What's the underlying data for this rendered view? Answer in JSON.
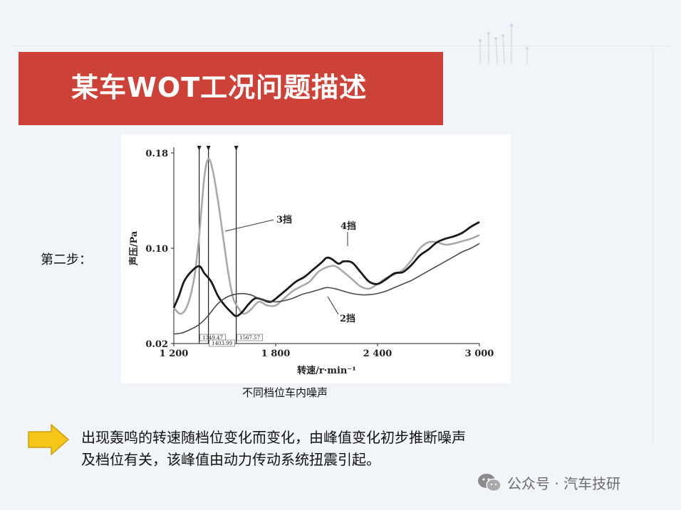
{
  "title": "某车WOT工况问题描述",
  "step_label": "第二步：",
  "caption": "不同档位车内噪声",
  "description_lines": [
    "出现轰鸣的转速随档位变化而变化，由峰值变化初步推断噪声",
    "及档位有关，该峰值由动力传动系统扭震引起。"
  ],
  "watermark": "公众号 · 汽车技研",
  "colors": {
    "title_bar": "#cc4238",
    "arrow": "#f5c518"
  },
  "chart_data": {
    "type": "line",
    "xlabel": "转速/r·min⁻¹",
    "ylabel": "声压/Pa",
    "xlim": [
      1200,
      3000
    ],
    "ylim": [
      0.02,
      0.18
    ],
    "x_ticks": [
      "1 200",
      "1 800",
      "2 400",
      "3 000"
    ],
    "y_ticks": [
      "0.18",
      "0.10",
      "0.02"
    ],
    "vlines": [
      {
        "x": 1349.47,
        "label": "1349.47"
      },
      {
        "x": 1403.99,
        "label": "1403.99"
      },
      {
        "x": 1567.57,
        "label": "1567.57"
      }
    ],
    "series": [
      {
        "name": "3挡",
        "color": "#a9a9a9",
        "x": [
          1200,
          1240,
          1280,
          1320,
          1349,
          1380,
          1404,
          1430,
          1460,
          1490,
          1520,
          1550,
          1580,
          1610,
          1650,
          1700,
          1750,
          1800,
          1850,
          1900,
          1950,
          2000,
          2050,
          2100,
          2150,
          2200,
          2250,
          2300,
          2350,
          2400,
          2450,
          2500,
          2550,
          2600,
          2650,
          2700,
          2750,
          2800,
          2850,
          2900,
          2950,
          3000
        ],
        "y": [
          0.05,
          0.045,
          0.052,
          0.075,
          0.11,
          0.16,
          0.175,
          0.165,
          0.14,
          0.11,
          0.08,
          0.058,
          0.05,
          0.045,
          0.048,
          0.055,
          0.052,
          0.052,
          0.058,
          0.064,
          0.068,
          0.072,
          0.08,
          0.084,
          0.085,
          0.08,
          0.074,
          0.068,
          0.066,
          0.07,
          0.075,
          0.078,
          0.082,
          0.09,
          0.1,
          0.105,
          0.105,
          0.103,
          0.104,
          0.106,
          0.108,
          0.111
        ]
      },
      {
        "name": "4挡",
        "color": "#1a1a1a",
        "x": [
          1200,
          1230,
          1260,
          1300,
          1349,
          1380,
          1420,
          1460,
          1500,
          1540,
          1567,
          1600,
          1640,
          1680,
          1720,
          1770,
          1820,
          1870,
          1920,
          1970,
          2020,
          2070,
          2100,
          2130,
          2170,
          2200,
          2250,
          2300,
          2350,
          2400,
          2450,
          2500,
          2550,
          2600,
          2650,
          2700,
          2750,
          2800,
          2850,
          2900,
          2950,
          3000
        ],
        "y": [
          0.05,
          0.06,
          0.072,
          0.08,
          0.085,
          0.079,
          0.072,
          0.06,
          0.052,
          0.046,
          0.043,
          0.046,
          0.053,
          0.058,
          0.057,
          0.055,
          0.06,
          0.066,
          0.072,
          0.076,
          0.082,
          0.088,
          0.092,
          0.091,
          0.087,
          0.089,
          0.088,
          0.08,
          0.072,
          0.07,
          0.074,
          0.079,
          0.08,
          0.086,
          0.094,
          0.099,
          0.105,
          0.108,
          0.11,
          0.113,
          0.118,
          0.122
        ]
      },
      {
        "name": "2挡",
        "color": "#4a4a4a",
        "x": [
          1200,
          1250,
          1300,
          1349,
          1400,
          1450,
          1500,
          1550,
          1600,
          1650,
          1700,
          1750,
          1800,
          1850,
          1900,
          1950,
          2000,
          2050,
          2100,
          2150,
          2200,
          2250,
          2300,
          2350,
          2400,
          2450,
          2500,
          2550,
          2600,
          2650,
          2700,
          2750,
          2800,
          2850,
          2900,
          2950,
          3000
        ],
        "y": [
          0.028,
          0.029,
          0.032,
          0.036,
          0.043,
          0.052,
          0.058,
          0.061,
          0.062,
          0.061,
          0.058,
          0.056,
          0.055,
          0.056,
          0.058,
          0.061,
          0.063,
          0.065,
          0.067,
          0.066,
          0.064,
          0.062,
          0.061,
          0.061,
          0.062,
          0.064,
          0.067,
          0.07,
          0.073,
          0.077,
          0.081,
          0.085,
          0.089,
          0.093,
          0.097,
          0.1,
          0.104
        ]
      }
    ]
  }
}
